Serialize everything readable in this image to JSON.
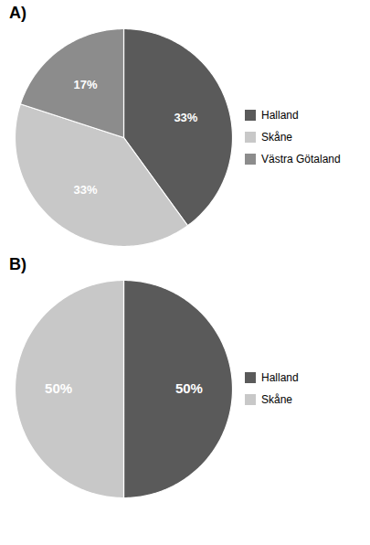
{
  "chart_data": [
    {
      "type": "pie",
      "title": "A)",
      "categories": [
        "Halland",
        "Skåne",
        "Västra Götaland"
      ],
      "values": [
        33.33,
        33.33,
        16.67
      ],
      "value_labels": [
        "33%",
        "33%",
        "17%"
      ],
      "colors": [
        "#5a5a5a",
        "#c8c8c8",
        "#8c8c8c"
      ],
      "data_labels": true,
      "legend": "right"
    },
    {
      "type": "pie",
      "title": "B)",
      "categories": [
        "Halland",
        "Skåne"
      ],
      "values": [
        50,
        50
      ],
      "value_labels": [
        "50%",
        "50%"
      ],
      "colors": [
        "#5a5a5a",
        "#c8c8c8"
      ],
      "data_labels": true,
      "legend": "right"
    }
  ]
}
